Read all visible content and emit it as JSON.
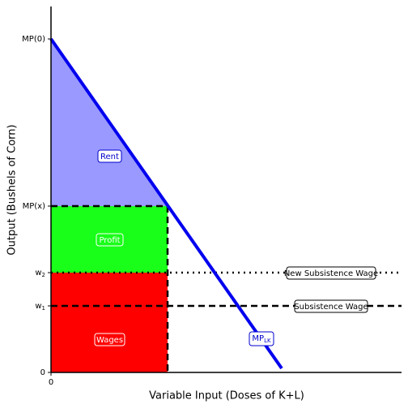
{
  "axes": {
    "x_label": "Variable Input (Doses of K+L)",
    "y_label": "Output (Bushels of Corn)",
    "x_origin": "0",
    "y_ticks": [
      {
        "base": "MP(0)"
      },
      {
        "base": "MP(x)"
      },
      {
        "base": "w",
        "sub": "2"
      },
      {
        "base": "w",
        "sub": "1"
      },
      {
        "base": "0"
      }
    ]
  },
  "regions": {
    "rent": "Rent",
    "profit": "Profit",
    "wages": "Wages"
  },
  "lines": {
    "new_subsistence": "New Subsistence Wage",
    "subsistence": "Subsistence Wage",
    "mp": {
      "base": "MP",
      "sub": "LK"
    }
  }
}
